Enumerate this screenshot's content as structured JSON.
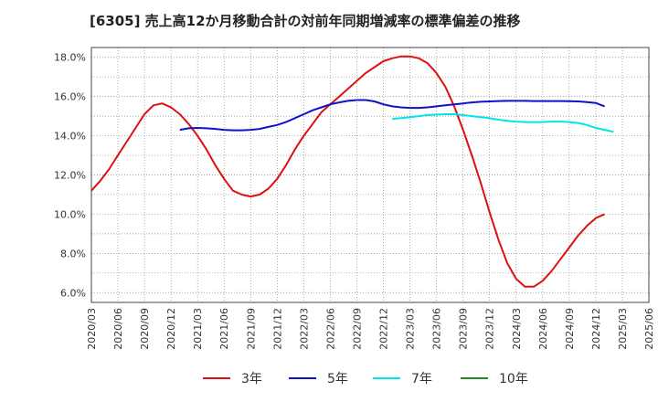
{
  "chart_data": {
    "type": "line",
    "title": "[6305]  売上高12か月移動合計の対前年同期増減率の標準偏差の推移",
    "xlabel": "",
    "ylabel": "",
    "x_ticks": [
      "2020/03",
      "2020/06",
      "2020/09",
      "2020/12",
      "2021/03",
      "2021/06",
      "2021/09",
      "2021/12",
      "2022/03",
      "2022/06",
      "2022/09",
      "2022/12",
      "2023/03",
      "2023/06",
      "2023/09",
      "2023/12",
      "2024/03",
      "2024/06",
      "2024/09",
      "2024/12",
      "2025/03",
      "2025/06"
    ],
    "y_ticks": [
      "6.0%",
      "8.0%",
      "10.0%",
      "12.0%",
      "14.0%",
      "16.0%",
      "18.0%"
    ],
    "ylim": [
      5.5,
      18.5
    ],
    "grid": true,
    "legend_position": "bottom",
    "series": [
      {
        "name": "3年",
        "color": "#dd1111",
        "points": [
          [
            "2020/03",
            11.2
          ],
          [
            "2020/04",
            11.7
          ],
          [
            "2020/05",
            12.3
          ],
          [
            "2020/06",
            13.0
          ],
          [
            "2020/07",
            13.7
          ],
          [
            "2020/08",
            14.4
          ],
          [
            "2020/09",
            15.1
          ],
          [
            "2020/10",
            15.55
          ],
          [
            "2020/11",
            15.65
          ],
          [
            "2020/12",
            15.45
          ],
          [
            "2021/01",
            15.1
          ],
          [
            "2021/02",
            14.6
          ],
          [
            "2021/03",
            14.0
          ],
          [
            "2021/04",
            13.3
          ],
          [
            "2021/05",
            12.5
          ],
          [
            "2021/06",
            11.8
          ],
          [
            "2021/07",
            11.2
          ],
          [
            "2021/08",
            11.0
          ],
          [
            "2021/09",
            10.9
          ],
          [
            "2021/10",
            11.0
          ],
          [
            "2021/11",
            11.3
          ],
          [
            "2021/12",
            11.8
          ],
          [
            "2022/01",
            12.5
          ],
          [
            "2022/02",
            13.3
          ],
          [
            "2022/03",
            14.0
          ],
          [
            "2022/04",
            14.6
          ],
          [
            "2022/05",
            15.2
          ],
          [
            "2022/06",
            15.6
          ],
          [
            "2022/07",
            16.0
          ],
          [
            "2022/08",
            16.4
          ],
          [
            "2022/09",
            16.8
          ],
          [
            "2022/10",
            17.2
          ],
          [
            "2022/11",
            17.5
          ],
          [
            "2022/12",
            17.8
          ],
          [
            "2023/01",
            17.95
          ],
          [
            "2023/02",
            18.05
          ],
          [
            "2023/03",
            18.05
          ],
          [
            "2023/04",
            17.95
          ],
          [
            "2023/05",
            17.7
          ],
          [
            "2023/06",
            17.2
          ],
          [
            "2023/07",
            16.5
          ],
          [
            "2023/08",
            15.5
          ],
          [
            "2023/09",
            14.3
          ],
          [
            "2023/10",
            13.0
          ],
          [
            "2023/11",
            11.6
          ],
          [
            "2023/12",
            10.1
          ],
          [
            "2024/01",
            8.7
          ],
          [
            "2024/02",
            7.5
          ],
          [
            "2024/03",
            6.7
          ],
          [
            "2024/04",
            6.3
          ],
          [
            "2024/05",
            6.3
          ],
          [
            "2024/06",
            6.6
          ],
          [
            "2024/07",
            7.1
          ],
          [
            "2024/08",
            7.7
          ],
          [
            "2024/09",
            8.3
          ],
          [
            "2024/10",
            8.9
          ],
          [
            "2024/11",
            9.4
          ],
          [
            "2024/12",
            9.8
          ],
          [
            "2025/01",
            10.0
          ]
        ]
      },
      {
        "name": "5年",
        "color": "#1111cc",
        "points": [
          [
            "2021/01",
            14.3
          ],
          [
            "2021/02",
            14.38
          ],
          [
            "2021/03",
            14.4
          ],
          [
            "2021/04",
            14.38
          ],
          [
            "2021/05",
            14.35
          ],
          [
            "2021/06",
            14.3
          ],
          [
            "2021/07",
            14.28
          ],
          [
            "2021/08",
            14.28
          ],
          [
            "2021/09",
            14.3
          ],
          [
            "2021/10",
            14.35
          ],
          [
            "2021/11",
            14.45
          ],
          [
            "2021/12",
            14.55
          ],
          [
            "2022/01",
            14.7
          ],
          [
            "2022/02",
            14.9
          ],
          [
            "2022/03",
            15.1
          ],
          [
            "2022/04",
            15.3
          ],
          [
            "2022/05",
            15.45
          ],
          [
            "2022/06",
            15.6
          ],
          [
            "2022/07",
            15.7
          ],
          [
            "2022/08",
            15.78
          ],
          [
            "2022/09",
            15.82
          ],
          [
            "2022/10",
            15.82
          ],
          [
            "2022/11",
            15.75
          ],
          [
            "2022/12",
            15.6
          ],
          [
            "2023/01",
            15.5
          ],
          [
            "2023/02",
            15.45
          ],
          [
            "2023/03",
            15.42
          ],
          [
            "2023/04",
            15.42
          ],
          [
            "2023/05",
            15.45
          ],
          [
            "2023/06",
            15.5
          ],
          [
            "2023/07",
            15.55
          ],
          [
            "2023/08",
            15.6
          ],
          [
            "2023/09",
            15.65
          ],
          [
            "2023/10",
            15.7
          ],
          [
            "2023/11",
            15.73
          ],
          [
            "2023/12",
            15.75
          ],
          [
            "2024/01",
            15.77
          ],
          [
            "2024/02",
            15.78
          ],
          [
            "2024/03",
            15.78
          ],
          [
            "2024/04",
            15.78
          ],
          [
            "2024/05",
            15.77
          ],
          [
            "2024/06",
            15.77
          ],
          [
            "2024/07",
            15.77
          ],
          [
            "2024/08",
            15.77
          ],
          [
            "2024/09",
            15.76
          ],
          [
            "2024/10",
            15.75
          ],
          [
            "2024/11",
            15.72
          ],
          [
            "2024/12",
            15.67
          ],
          [
            "2025/01",
            15.5
          ]
        ]
      },
      {
        "name": "7年",
        "color": "#00e5e5",
        "points": [
          [
            "2023/01",
            14.85
          ],
          [
            "2023/02",
            14.9
          ],
          [
            "2023/03",
            14.95
          ],
          [
            "2023/04",
            15.0
          ],
          [
            "2023/05",
            15.05
          ],
          [
            "2023/06",
            15.08
          ],
          [
            "2023/07",
            15.1
          ],
          [
            "2023/08",
            15.1
          ],
          [
            "2023/09",
            15.05
          ],
          [
            "2023/10",
            15.0
          ],
          [
            "2023/11",
            14.95
          ],
          [
            "2023/12",
            14.9
          ],
          [
            "2024/01",
            14.82
          ],
          [
            "2024/02",
            14.76
          ],
          [
            "2024/03",
            14.72
          ],
          [
            "2024/04",
            14.7
          ],
          [
            "2024/05",
            14.7
          ],
          [
            "2024/06",
            14.7
          ],
          [
            "2024/07",
            14.72
          ],
          [
            "2024/08",
            14.72
          ],
          [
            "2024/09",
            14.7
          ],
          [
            "2024/10",
            14.65
          ],
          [
            "2024/11",
            14.55
          ],
          [
            "2024/12",
            14.4
          ],
          [
            "2025/01",
            14.3
          ],
          [
            "2025/02",
            14.2
          ]
        ]
      },
      {
        "name": "10年",
        "color": "#228b22",
        "points": []
      }
    ]
  }
}
